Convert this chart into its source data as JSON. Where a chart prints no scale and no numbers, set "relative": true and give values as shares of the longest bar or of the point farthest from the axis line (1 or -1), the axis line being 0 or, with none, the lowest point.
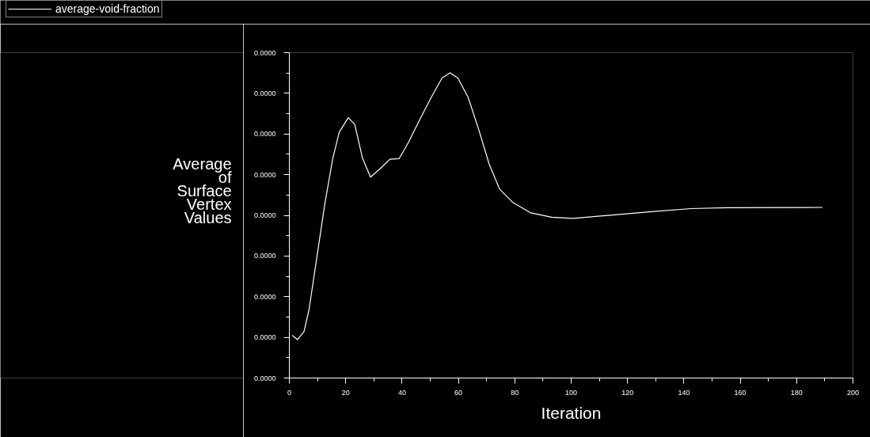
{
  "chart_data": {
    "type": "line",
    "relative": true,
    "xlabel": "Iteration",
    "ylabel": "Average of Surface Vertex Values",
    "legend": "top left",
    "grid": false,
    "xlim": [
      0,
      200
    ],
    "xticks": [
      0,
      20,
      40,
      60,
      80,
      100,
      120,
      140,
      160,
      180,
      200
    ],
    "annotations": [
      "0.0000",
      "0.0000",
      "0.0000",
      "0.0000",
      "0.0000",
      "0.0000",
      "0.0000",
      "0.0000",
      "0.0000"
    ],
    "series": [
      {
        "name": "average-void-fraction",
        "color": "#ffffff",
        "x": [
          1.0,
          2.9,
          5.2,
          7.0,
          9.8,
          12.6,
          15.4,
          17.7,
          20.9,
          23.2,
          26.0,
          28.8,
          32.0,
          35.7,
          39.0,
          42.2,
          46.4,
          50.5,
          54.2,
          57.0,
          59.8,
          63.5,
          67.2,
          70.9,
          74.6,
          79.2,
          85.7,
          93.1,
          100.6,
          114.6,
          128.5,
          142.4,
          155.4,
          189.2
        ],
        "values": [
          0.14,
          0.126,
          0.152,
          0.225,
          0.398,
          0.571,
          0.719,
          0.805,
          0.853,
          0.831,
          0.719,
          0.658,
          0.684,
          0.717,
          0.719,
          0.771,
          0.849,
          0.922,
          0.983,
          1.0,
          0.983,
          0.918,
          0.814,
          0.701,
          0.619,
          0.576,
          0.541,
          0.527,
          0.523,
          0.534,
          0.545,
          0.555,
          0.558,
          0.559
        ]
      }
    ]
  }
}
